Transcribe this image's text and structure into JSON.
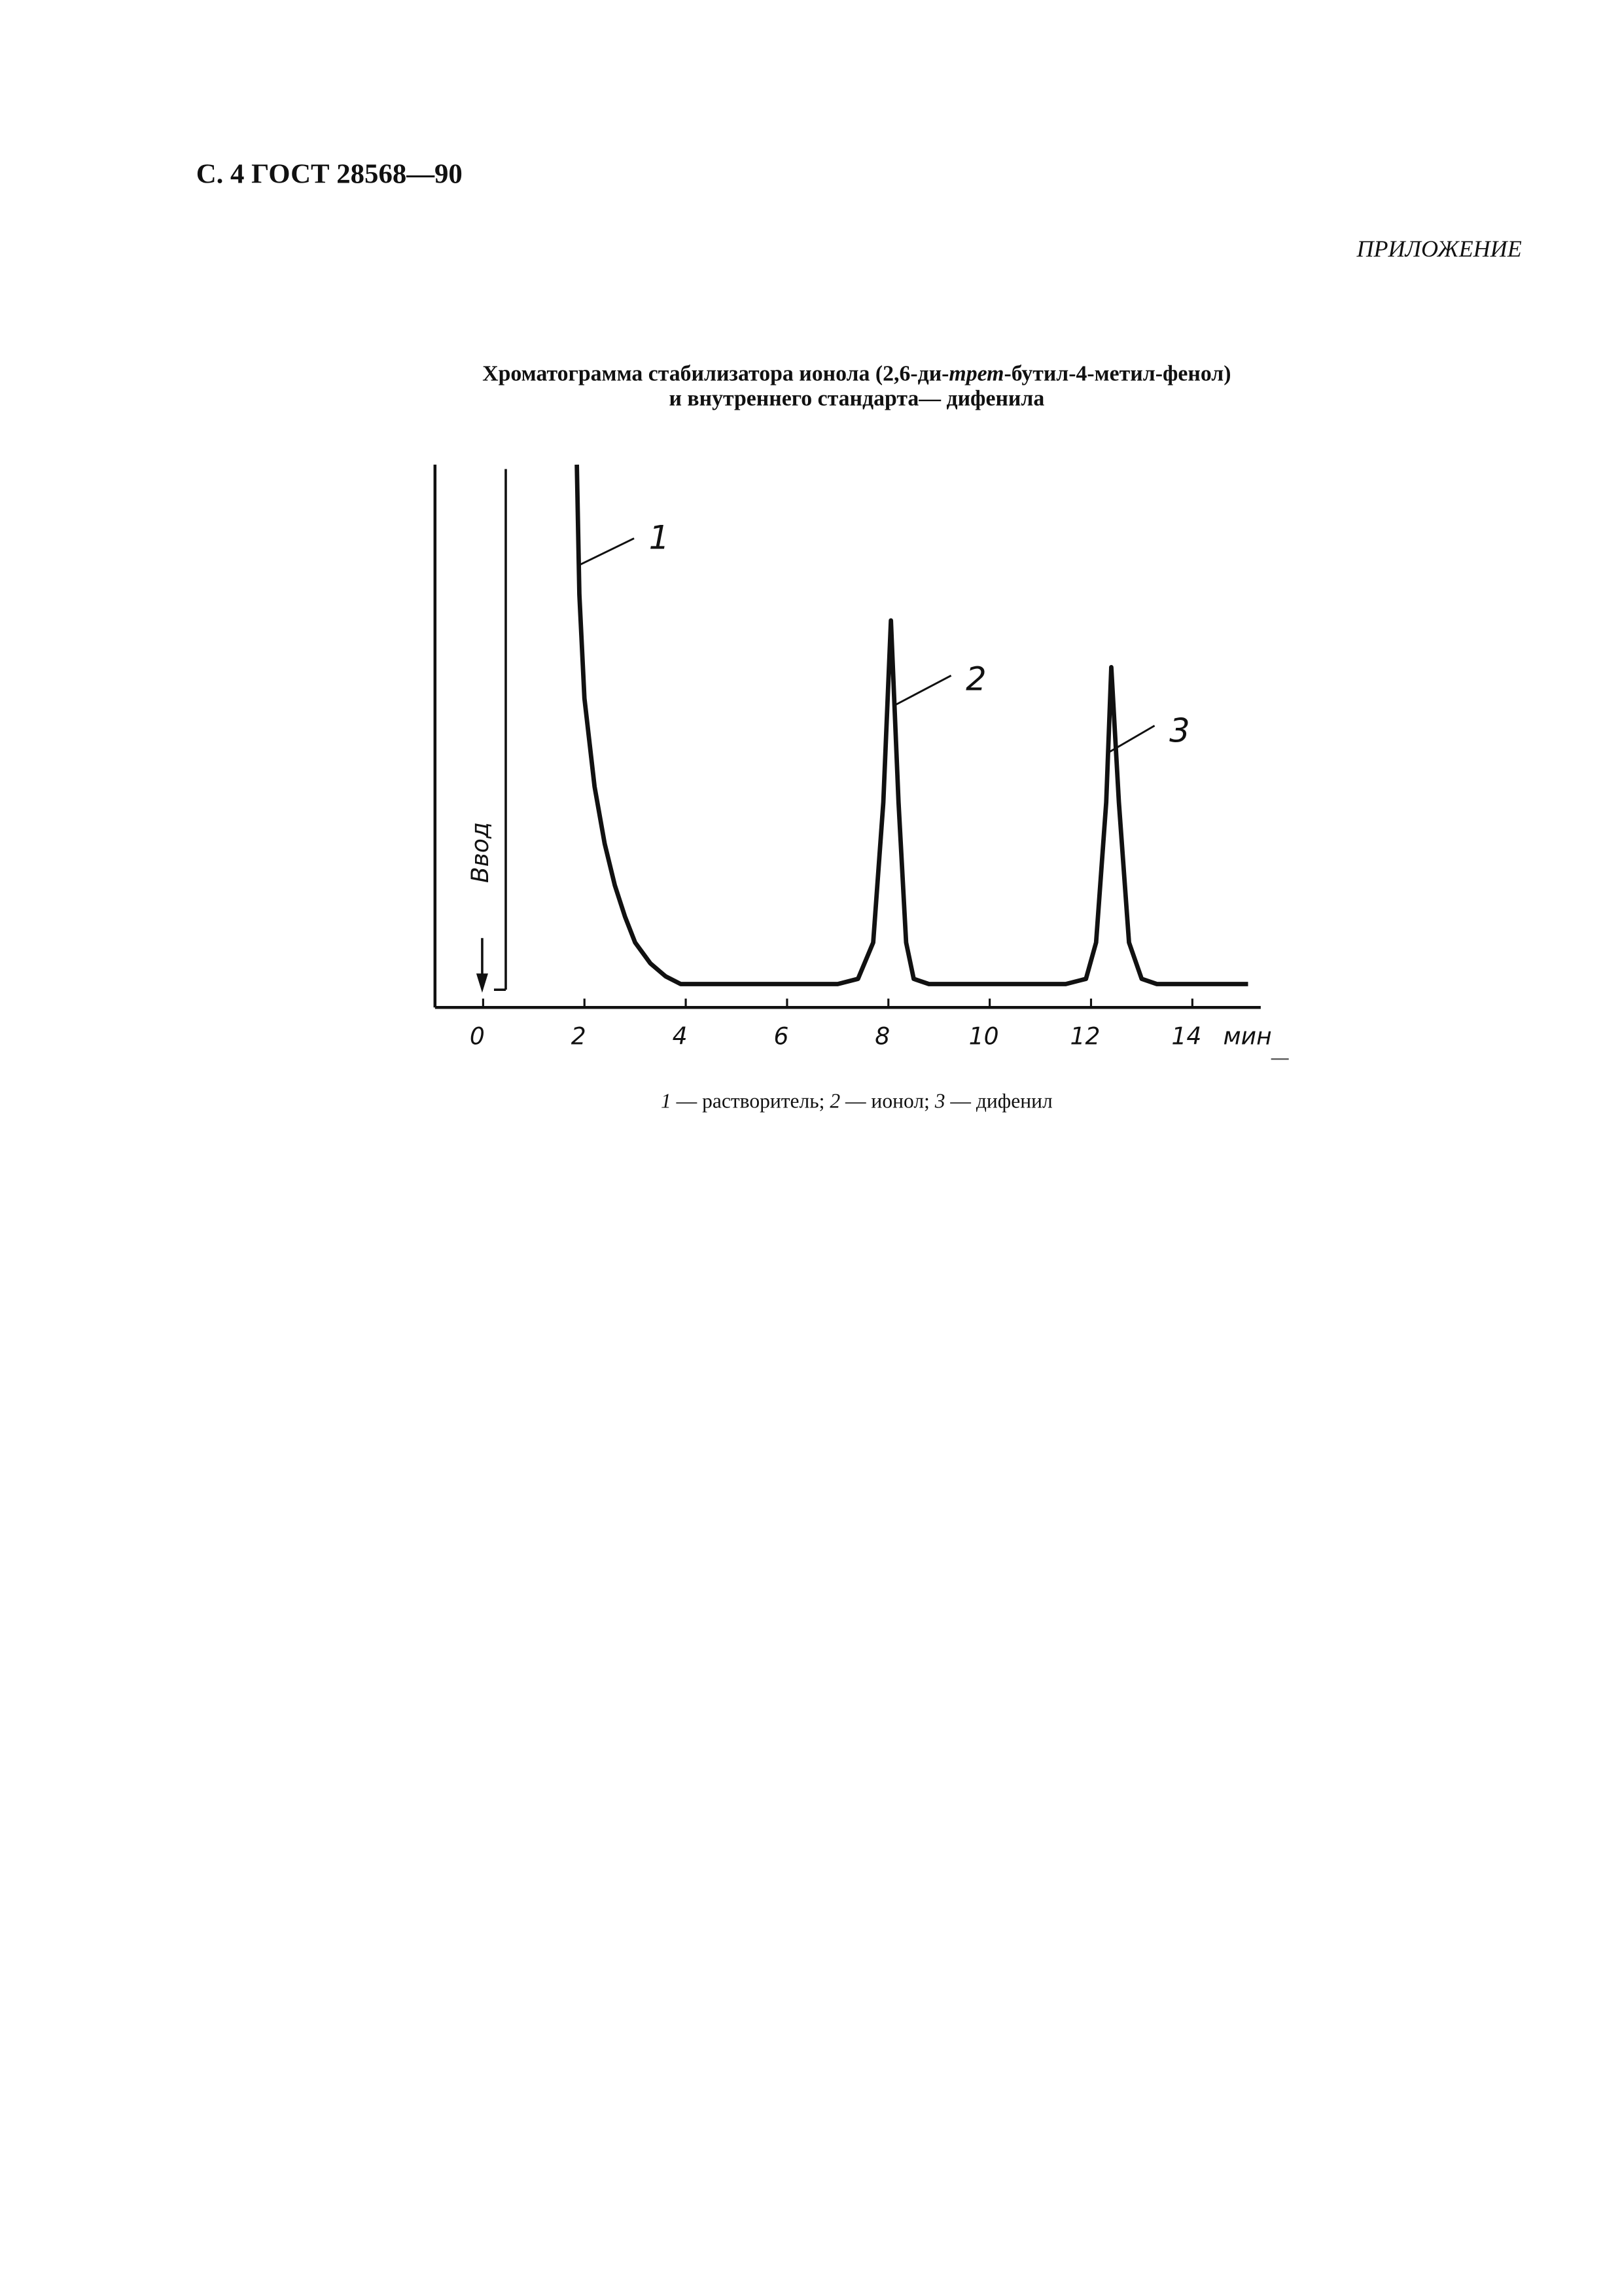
{
  "header": "С. 4 ГОСТ 28568—90",
  "appendix": "ПРИЛОЖЕНИЕ",
  "figure_title": {
    "line1": [
      "Хроматограмма стабилизатора ионола (2,6-ди-",
      "трет",
      "-бутил-4-метил-фенол)"
    ],
    "line2": "и внутреннего стандарта— дифенила"
  },
  "chart_data": {
    "type": "line",
    "x": [
      1.85,
      1.9,
      2.0,
      2.2,
      2.4,
      2.6,
      2.8,
      3.0,
      3.3,
      3.6,
      3.9,
      5.0,
      7.0,
      7.4,
      7.7,
      7.9,
      8.05,
      8.2,
      8.35,
      8.5,
      8.8,
      11.5,
      11.9,
      12.1,
      12.3,
      12.4,
      12.55,
      12.75,
      13.0,
      13.3,
      15.1
    ],
    "values": [
      100,
      75,
      55,
      38,
      27,
      19,
      13,
      8,
      4,
      1.5,
      0,
      0,
      0,
      1,
      8,
      35,
      70,
      35,
      8,
      1,
      0,
      0,
      1,
      8,
      35,
      61,
      35,
      8,
      1,
      0,
      0
    ],
    "color": "#111111",
    "xlim": [
      -0.95,
      15.35
    ],
    "ylim": [
      -4.5,
      100
    ],
    "xticks": [
      0,
      2,
      4,
      6,
      8,
      10,
      12,
      14
    ],
    "x_unit": "мин",
    "injection_label": "Ввод",
    "peak_labels": [
      "1",
      "2",
      "3"
    ]
  },
  "caption": [
    {
      "number": "1",
      "text": " — растворитель; "
    },
    {
      "number": "2",
      "text": " — ионол; "
    },
    {
      "number": "3",
      "text": " — дифенил"
    }
  ]
}
